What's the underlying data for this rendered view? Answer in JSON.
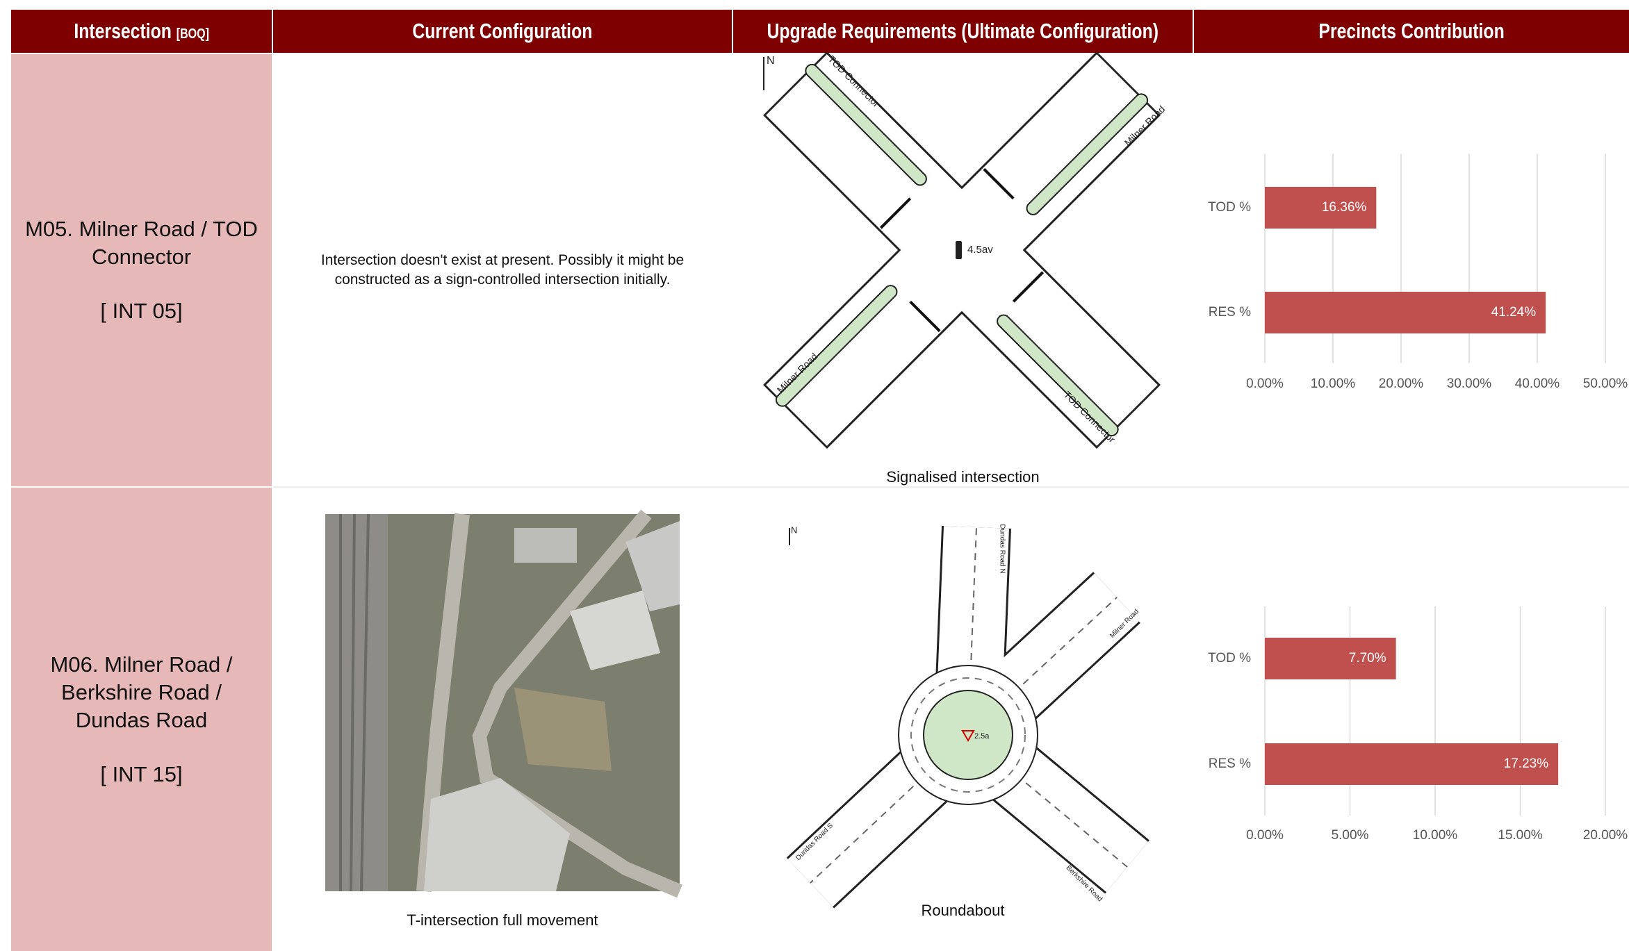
{
  "table": {
    "headers": [
      "Intersection",
      "Current Configuration",
      "Upgrade Requirements (Ultimate Configuration)",
      "Precincts Contribution"
    ],
    "header_note": "[BOQ]",
    "rows": [
      {
        "intersection": "M05. Milner Road / TOD Connector",
        "code": "[ INT 05]",
        "current": "Intersection doesn't exist at present. Possibly it might be constructed as a sign-controlled intersection initially.",
        "upgrade_caption": "Signalised intersection",
        "upgrade_labels": [
          "N",
          "TOD Connector",
          "Milner Road",
          "Milner Road",
          "TOD Connector",
          "4.5av"
        ],
        "chart": {
          "type": "bar",
          "orientation": "horizontal",
          "categories": [
            "TOD %",
            "RES %"
          ],
          "values": [
            16.36,
            41.24
          ],
          "value_labels": [
            "16.36%",
            "41.24%"
          ],
          "color": "#c0504d",
          "xlim": [
            0,
            50
          ],
          "xticks": [
            {
              "value": 0,
              "label": "0.00%"
            },
            {
              "value": 10,
              "label": "10.00%"
            },
            {
              "value": 20,
              "label": "20.00%"
            },
            {
              "value": 30,
              "label": "30.00%"
            },
            {
              "value": 40,
              "label": "40.00%"
            },
            {
              "value": 50,
              "label": "50.00%"
            }
          ],
          "grid": true
        }
      },
      {
        "intersection": "M06. Milner Road / Berkshire Road / Dundas Road",
        "code": "[ INT 15]",
        "current_caption": "T-intersection full movement",
        "upgrade_caption": "Roundabout",
        "upgrade_labels": [
          "N",
          "Dundas Road N",
          "Milner Road",
          "Dundas Road S",
          "Berkshire Road",
          "2.5a"
        ],
        "chart": {
          "type": "bar",
          "orientation": "horizontal",
          "categories": [
            "TOD %",
            "RES %"
          ],
          "values": [
            7.7,
            17.23
          ],
          "value_labels": [
            "7.70%",
            "17.23%"
          ],
          "color": "#c0504d",
          "xlim": [
            0,
            20
          ],
          "xticks": [
            {
              "value": 0,
              "label": "0.00%"
            },
            {
              "value": 5,
              "label": "5.00%"
            },
            {
              "value": 10,
              "label": "10.00%"
            },
            {
              "value": 15,
              "label": "15.00%"
            },
            {
              "value": 20,
              "label": "20.00%"
            }
          ],
          "grid": true
        }
      }
    ]
  }
}
